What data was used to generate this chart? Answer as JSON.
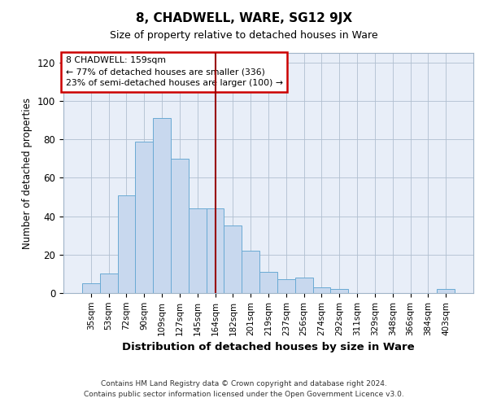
{
  "title": "8, CHADWELL, WARE, SG12 9JX",
  "subtitle": "Size of property relative to detached houses in Ware",
  "xlabel": "Distribution of detached houses by size in Ware",
  "ylabel": "Number of detached properties",
  "bar_labels": [
    "35sqm",
    "53sqm",
    "72sqm",
    "90sqm",
    "109sqm",
    "127sqm",
    "145sqm",
    "164sqm",
    "182sqm",
    "201sqm",
    "219sqm",
    "237sqm",
    "256sqm",
    "274sqm",
    "292sqm",
    "311sqm",
    "329sqm",
    "348sqm",
    "366sqm",
    "384sqm",
    "403sqm"
  ],
  "bar_values": [
    5,
    10,
    51,
    79,
    91,
    70,
    44,
    44,
    35,
    22,
    11,
    7,
    8,
    3,
    2,
    0,
    0,
    0,
    0,
    0,
    2
  ],
  "bar_color": "#c8d8ee",
  "bar_edge_color": "#6aaad4",
  "vline_x_index": 7,
  "vline_color": "#990000",
  "annotation_line1": "8 CHADWELL: 159sqm",
  "annotation_line2": "← 77% of detached houses are smaller (336)",
  "annotation_line3": "23% of semi-detached houses are larger (100) →",
  "annotation_box_color": "#ffffff",
  "annotation_box_edge_color": "#cc0000",
  "ylim": [
    0,
    125
  ],
  "yticks": [
    0,
    20,
    40,
    60,
    80,
    100,
    120
  ],
  "footnote1": "Contains HM Land Registry data © Crown copyright and database right 2024.",
  "footnote2": "Contains public sector information licensed under the Open Government Licence v3.0.",
  "background_color": "#ffffff",
  "plot_background_color": "#e8eef8",
  "grid_color": "#b0bfd0"
}
